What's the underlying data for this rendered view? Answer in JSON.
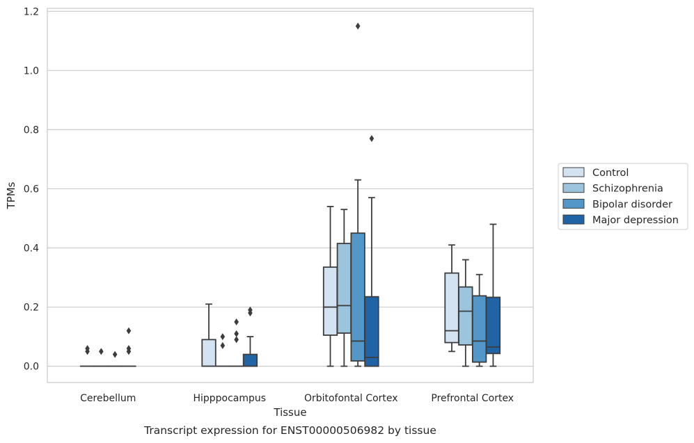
{
  "chart_data": {
    "type": "boxplot",
    "caption": "Transcript expression for ENST00000506982 by tissue",
    "xlabel": "Tissue",
    "ylabel": "TPMs",
    "ylim": [
      -0.055,
      1.21
    ],
    "yticks": [
      0.0,
      0.2,
      0.4,
      0.6,
      0.8,
      1.0,
      1.2
    ],
    "ytick_labels": [
      "0.0",
      "0.2",
      "0.4",
      "0.6",
      "0.8",
      "1.0",
      "1.2"
    ],
    "grid": "horizontal",
    "legend_position": "outside-right",
    "categories": [
      "Cerebellum",
      "Hipppocampus",
      "Orbitofontal Cortex",
      "Prefrontal Cortex"
    ],
    "series": [
      {
        "name": "Control",
        "color": "#d3e3f2",
        "boxes": [
          {
            "min": 0,
            "q1": 0,
            "median": 0,
            "q3": 0,
            "max": 0,
            "outliers": [
              0.05,
              0.06
            ]
          },
          {
            "min": 0,
            "q1": 0,
            "median": 0,
            "q3": 0.09,
            "max": 0.21,
            "outliers": []
          },
          {
            "min": 0,
            "q1": 0.105,
            "median": 0.2,
            "q3": 0.335,
            "max": 0.54,
            "outliers": []
          },
          {
            "min": 0.05,
            "q1": 0.08,
            "median": 0.12,
            "q3": 0.315,
            "max": 0.41,
            "outliers": []
          }
        ]
      },
      {
        "name": "Schizophrenia",
        "color": "#9dc4dd",
        "boxes": [
          {
            "min": 0,
            "q1": 0,
            "median": 0,
            "q3": 0,
            "max": 0,
            "outliers": [
              0.05
            ]
          },
          {
            "min": 0,
            "q1": 0,
            "median": 0,
            "q3": 0,
            "max": 0,
            "outliers": [
              0.07,
              0.1
            ]
          },
          {
            "min": 0,
            "q1": 0.112,
            "median": 0.205,
            "q3": 0.415,
            "max": 0.53,
            "outliers": []
          },
          {
            "min": 0,
            "q1": 0.072,
            "median": 0.186,
            "q3": 0.268,
            "max": 0.36,
            "outliers": []
          }
        ]
      },
      {
        "name": "Bipolar disorder",
        "color": "#5297c7",
        "boxes": [
          {
            "min": 0,
            "q1": 0,
            "median": 0,
            "q3": 0,
            "max": 0,
            "outliers": [
              0.04
            ]
          },
          {
            "min": 0,
            "q1": 0,
            "median": 0,
            "q3": 0,
            "max": 0,
            "outliers": [
              0.09,
              0.11,
              0.15
            ]
          },
          {
            "min": 0,
            "q1": 0.018,
            "median": 0.085,
            "q3": 0.45,
            "max": 0.63,
            "outliers": [
              1.15
            ]
          },
          {
            "min": 0,
            "q1": 0.014,
            "median": 0.085,
            "q3": 0.238,
            "max": 0.31,
            "outliers": []
          }
        ]
      },
      {
        "name": "Major depression",
        "color": "#2164a5",
        "boxes": [
          {
            "min": 0,
            "q1": 0,
            "median": 0,
            "q3": 0,
            "max": 0,
            "outliers": [
              0.05,
              0.06,
              0.12
            ]
          },
          {
            "min": 0,
            "q1": 0,
            "median": 0,
            "q3": 0.04,
            "max": 0.1,
            "outliers": [
              0.18,
              0.19
            ]
          },
          {
            "min": 0,
            "q1": 0,
            "median": 0.03,
            "q3": 0.235,
            "max": 0.57,
            "outliers": [
              0.77
            ]
          },
          {
            "min": 0,
            "q1": 0.043,
            "median": 0.065,
            "q3": 0.233,
            "max": 0.48,
            "outliers": []
          }
        ]
      }
    ]
  }
}
